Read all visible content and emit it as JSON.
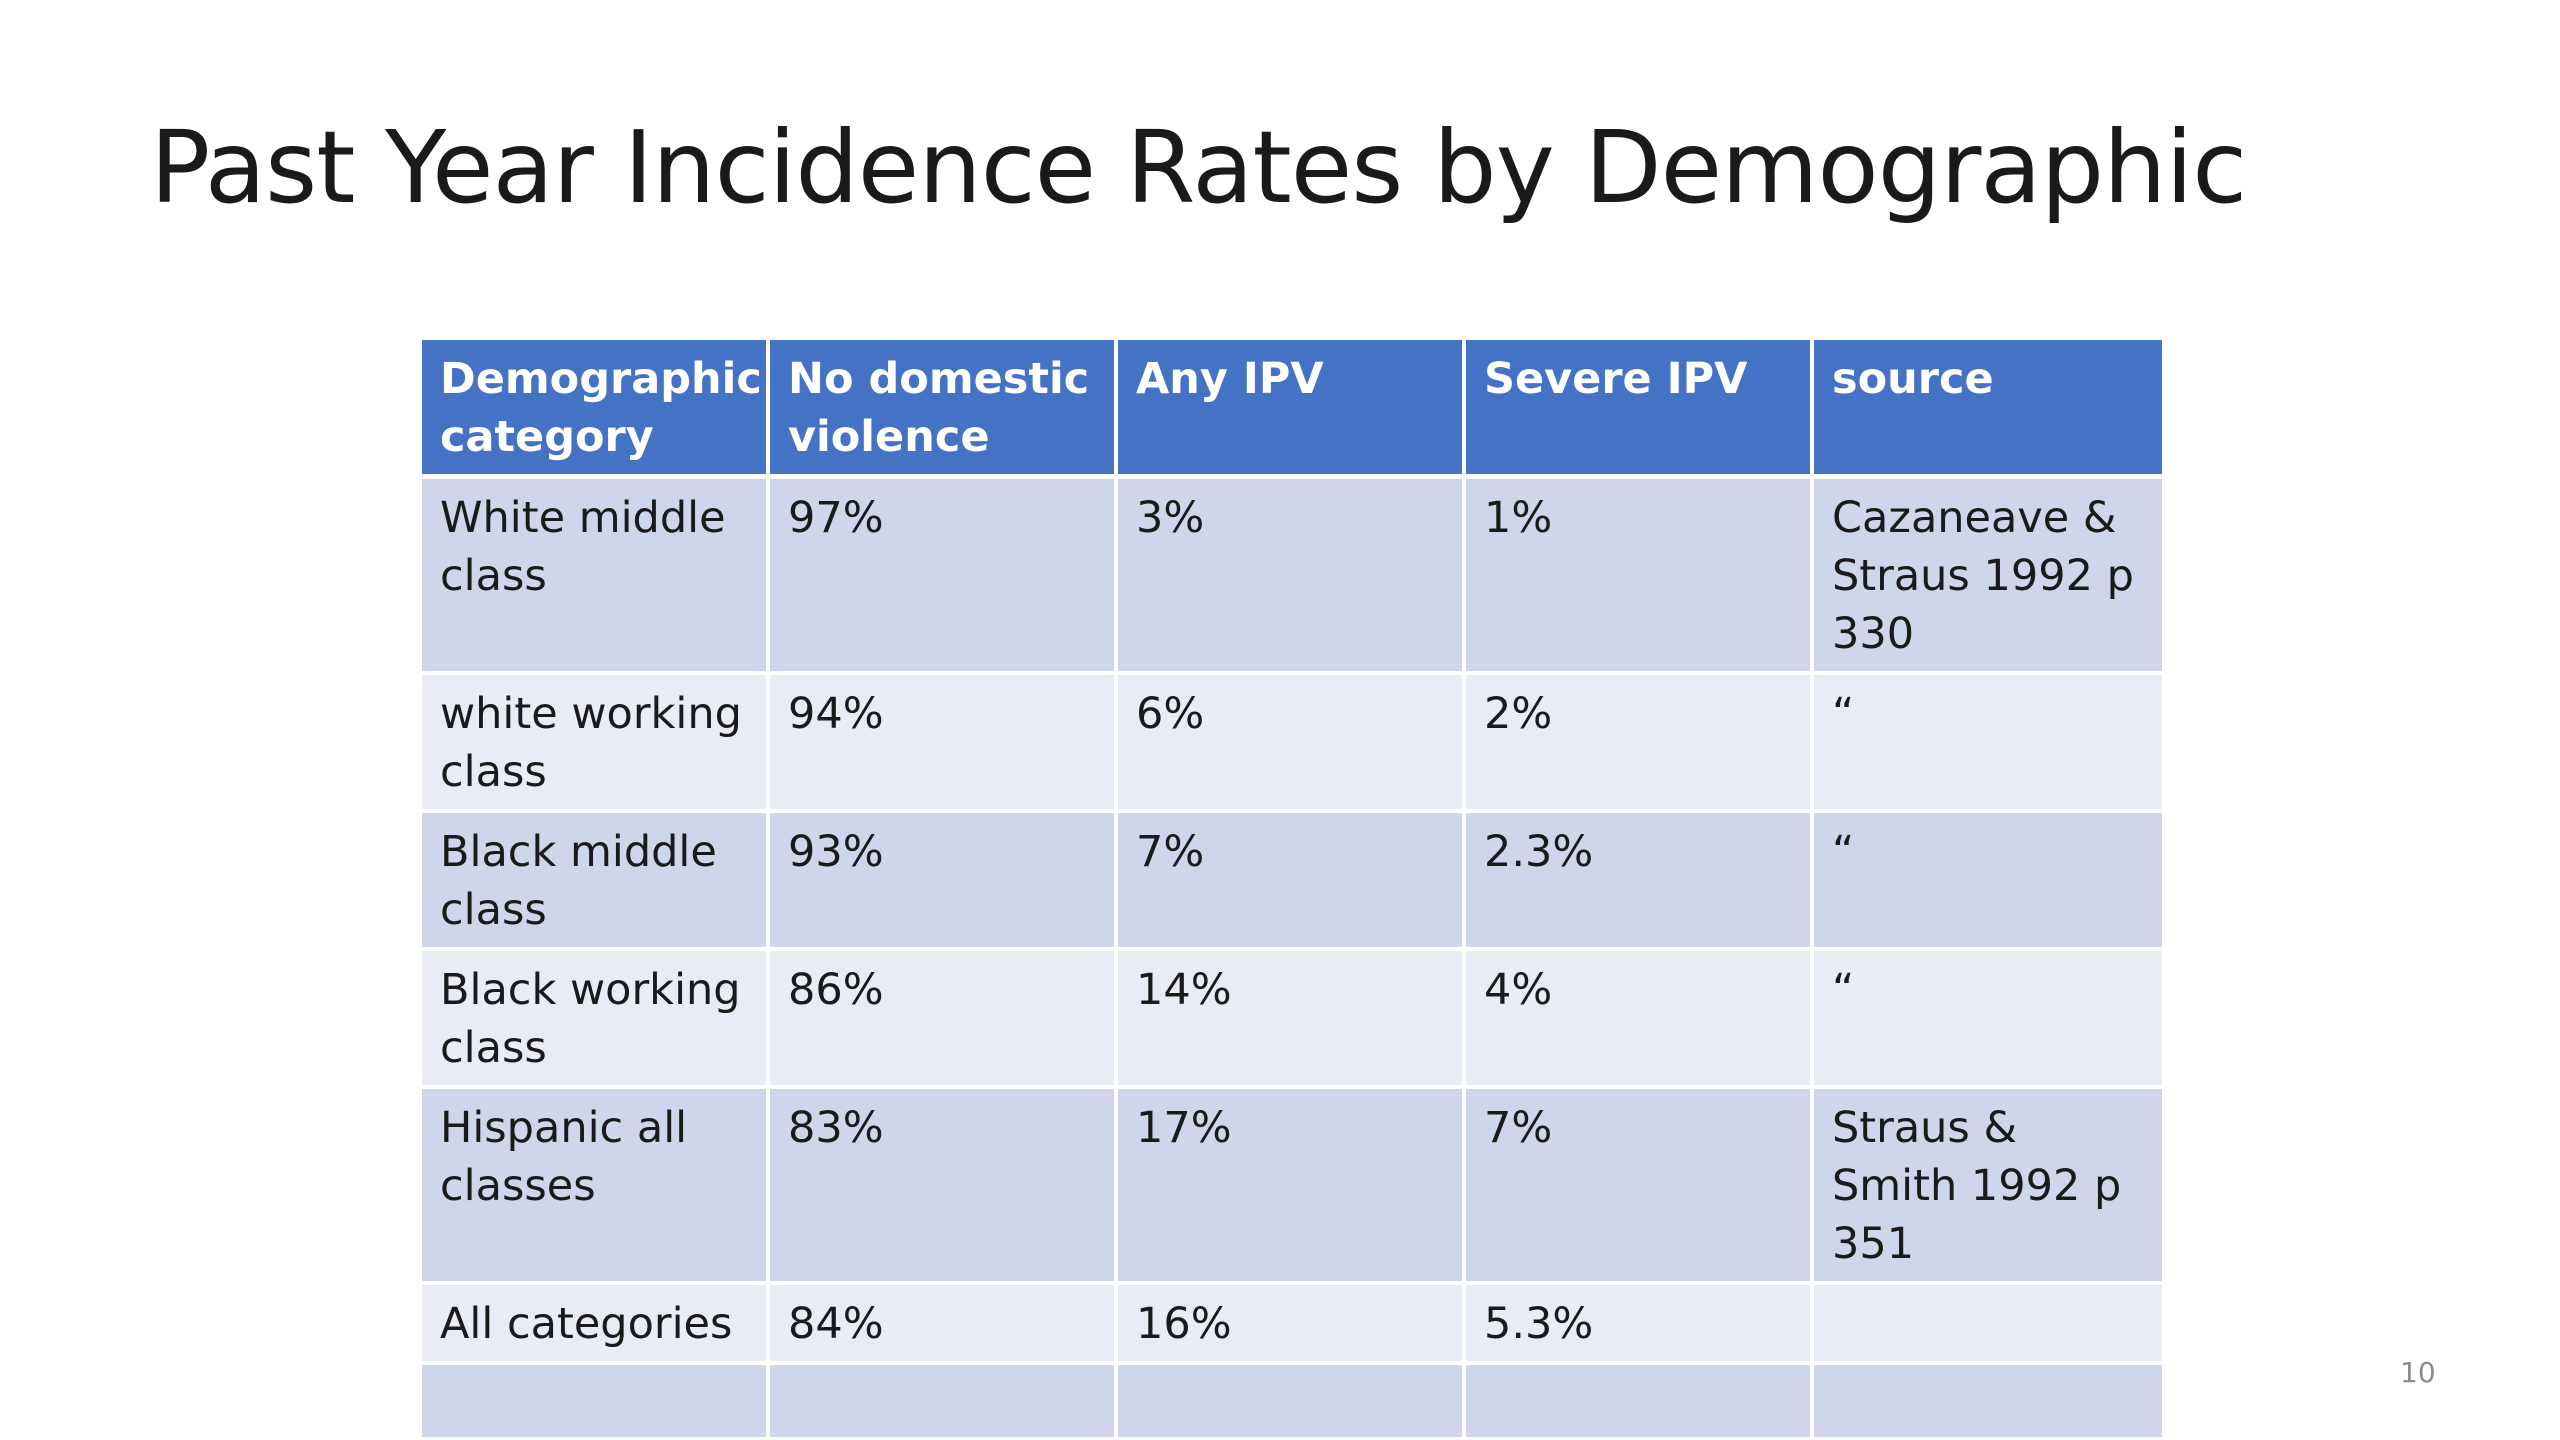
{
  "slide": {
    "title": "Past Year Incidence Rates by Demographic",
    "page_number": "10"
  },
  "table": {
    "headers": [
      "Demographic category",
      "No domestic violence",
      "Any IPV",
      "Severe IPV",
      "source"
    ],
    "rows": [
      [
        "White middle class",
        "97%",
        "3%",
        "1%",
        "Cazaneave & Straus 1992 p 330"
      ],
      [
        "white working class",
        "94%",
        "6%",
        "2%",
        "“"
      ],
      [
        "Black middle class",
        "93%",
        "7%",
        "2.3%",
        "“"
      ],
      [
        "Black working class",
        "86%",
        "14%",
        "4%",
        "“"
      ],
      [
        "Hispanic all classes",
        "83%",
        "17%",
        "7%",
        "Straus & Smith 1992 p 351"
      ],
      [
        "All categories",
        "84%",
        "16%",
        "5.3%",
        ""
      ],
      [
        "",
        "",
        "",
        "",
        ""
      ]
    ]
  },
  "colors": {
    "header_background": "#4472c4",
    "row_band_dark": "#cfd5ea",
    "row_band_light": "#e9ebf5"
  }
}
